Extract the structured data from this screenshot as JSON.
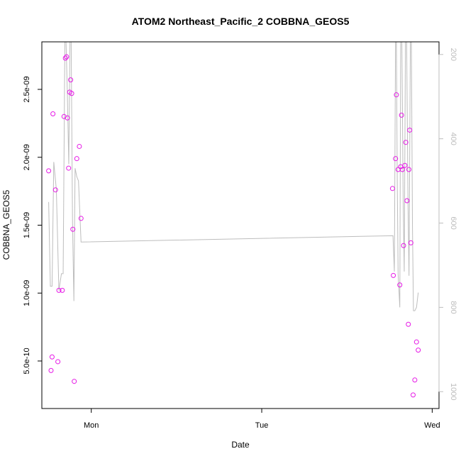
{
  "chart_data": {
    "type": "scatter",
    "title": "ATOM2 Northeast_Pacific_2 COBBNA_GEOS5",
    "xlabel": "Date",
    "ylabel": "COBBNA_GEOS5",
    "x_ticks": [
      {
        "label": "Mon",
        "day": 0
      },
      {
        "label": "Tue",
        "day": 1
      },
      {
        "label": "Wed",
        "day": 2
      }
    ],
    "xlim_days": [
      -0.29,
      2.04
    ],
    "ylim": [
      1.5e-10,
      2.85e-09
    ],
    "y_ticks": [
      {
        "value": 5e-10,
        "label": "5.0e-10"
      },
      {
        "value": 1e-09,
        "label": "1.0e-09"
      },
      {
        "value": 1.5e-09,
        "label": "1.5e-09"
      },
      {
        "value": 2e-09,
        "label": "2.0e-09"
      },
      {
        "value": 2.5e-09,
        "label": "2.5e-09"
      }
    ],
    "right_axis": {
      "quantity": "pressure",
      "lim": [
        1040,
        170
      ],
      "ticks": [
        200,
        400,
        600,
        800,
        1000
      ],
      "color": "#bdbdbd"
    },
    "colors": {
      "points": "#e619e6",
      "pressure_line": "#bdbdbd"
    },
    "series": [
      {
        "marker": "circle",
        "points": [
          {
            "day": -0.25,
            "value": 1.9e-09
          },
          {
            "day": -0.236,
            "value": 4.3e-10
          },
          {
            "day": -0.23,
            "value": 5.3e-10
          },
          {
            "day": -0.225,
            "value": 2.32e-09
          },
          {
            "day": -0.21,
            "value": 1.76e-09
          },
          {
            "day": -0.196,
            "value": 4.95e-10
          },
          {
            "day": -0.19,
            "value": 1.02e-09
          },
          {
            "day": -0.17,
            "value": 1.02e-09
          },
          {
            "day": -0.16,
            "value": 2.3e-09
          },
          {
            "day": -0.152,
            "value": 2.73e-09
          },
          {
            "day": -0.145,
            "value": 2.74e-09
          },
          {
            "day": -0.14,
            "value": 2.29e-09
          },
          {
            "day": -0.133,
            "value": 1.92e-09
          },
          {
            "day": -0.127,
            "value": 2.48e-09
          },
          {
            "day": -0.121,
            "value": 2.57e-09
          },
          {
            "day": -0.115,
            "value": 2.47e-09
          },
          {
            "day": -0.108,
            "value": 1.47e-09
          },
          {
            "day": -0.1,
            "value": 3.5e-10
          },
          {
            "day": -0.085,
            "value": 1.99e-09
          },
          {
            "day": -0.07,
            "value": 2.08e-09
          },
          {
            "day": -0.06,
            "value": 1.55e-09
          },
          {
            "day": 1.767,
            "value": 1.77e-09
          },
          {
            "day": 1.772,
            "value": 1.13e-09
          },
          {
            "day": 1.785,
            "value": 1.99e-09
          },
          {
            "day": 1.79,
            "value": 2.46e-09
          },
          {
            "day": 1.8,
            "value": 1.91e-09
          },
          {
            "day": 1.81,
            "value": 1.06e-09
          },
          {
            "day": 1.815,
            "value": 1.93e-09
          },
          {
            "day": 1.82,
            "value": 2.31e-09
          },
          {
            "day": 1.825,
            "value": 1.91e-09
          },
          {
            "day": 1.832,
            "value": 1.35e-09
          },
          {
            "day": 1.84,
            "value": 1.94e-09
          },
          {
            "day": 1.845,
            "value": 2.11e-09
          },
          {
            "day": 1.852,
            "value": 1.68e-09
          },
          {
            "day": 1.86,
            "value": 7.7e-10
          },
          {
            "day": 1.863,
            "value": 1.91e-09
          },
          {
            "day": 1.868,
            "value": 2.2e-09
          },
          {
            "day": 1.875,
            "value": 1.37e-09
          },
          {
            "day": 1.888,
            "value": 2.5e-10
          },
          {
            "day": 1.898,
            "value": 3.6e-10
          },
          {
            "day": 1.908,
            "value": 6.4e-10
          },
          {
            "day": 1.918,
            "value": 5.8e-10
          }
        ]
      },
      {
        "marker": "line",
        "axis": "right",
        "points": [
          {
            "day": -0.25,
            "pressure": 550
          },
          {
            "day": -0.24,
            "pressure": 750
          },
          {
            "day": -0.23,
            "pressure": 750
          },
          {
            "day": -0.22,
            "pressure": 455
          },
          {
            "day": -0.205,
            "pressure": 520
          },
          {
            "day": -0.19,
            "pressure": 760
          },
          {
            "day": -0.175,
            "pressure": 720
          },
          {
            "day": -0.165,
            "pressure": 720
          },
          {
            "day": -0.16,
            "pressure": 450
          },
          {
            "day": -0.155,
            "pressure": 170
          },
          {
            "day": -0.148,
            "pressure": 170
          },
          {
            "day": -0.14,
            "pressure": 300
          },
          {
            "day": -0.132,
            "pressure": 460
          },
          {
            "day": -0.125,
            "pressure": 170
          },
          {
            "day": -0.118,
            "pressure": 170
          },
          {
            "day": -0.11,
            "pressure": 600
          },
          {
            "day": -0.102,
            "pressure": 785
          },
          {
            "day": -0.095,
            "pressure": 470
          },
          {
            "day": -0.085,
            "pressure": 490
          },
          {
            "day": -0.075,
            "pressure": 500
          },
          {
            "day": -0.06,
            "pressure": 645
          },
          {
            "day": 1.77,
            "pressure": 630
          },
          {
            "day": 1.778,
            "pressure": 715
          },
          {
            "day": 1.785,
            "pressure": 170
          },
          {
            "day": 1.79,
            "pressure": 170
          },
          {
            "day": 1.795,
            "pressure": 500
          },
          {
            "day": 1.8,
            "pressure": 720
          },
          {
            "day": 1.81,
            "pressure": 800
          },
          {
            "day": 1.815,
            "pressure": 170
          },
          {
            "day": 1.822,
            "pressure": 170
          },
          {
            "day": 1.83,
            "pressure": 560
          },
          {
            "day": 1.836,
            "pressure": 715
          },
          {
            "day": 1.843,
            "pressure": 170
          },
          {
            "day": 1.85,
            "pressure": 170
          },
          {
            "day": 1.858,
            "pressure": 550
          },
          {
            "day": 1.864,
            "pressure": 725
          },
          {
            "day": 1.872,
            "pressure": 170
          },
          {
            "day": 1.878,
            "pressure": 170
          },
          {
            "day": 1.884,
            "pressure": 600
          },
          {
            "day": 1.89,
            "pressure": 808
          },
          {
            "day": 1.898,
            "pressure": 808
          },
          {
            "day": 1.908,
            "pressure": 800
          },
          {
            "day": 1.918,
            "pressure": 765
          }
        ]
      }
    ]
  }
}
